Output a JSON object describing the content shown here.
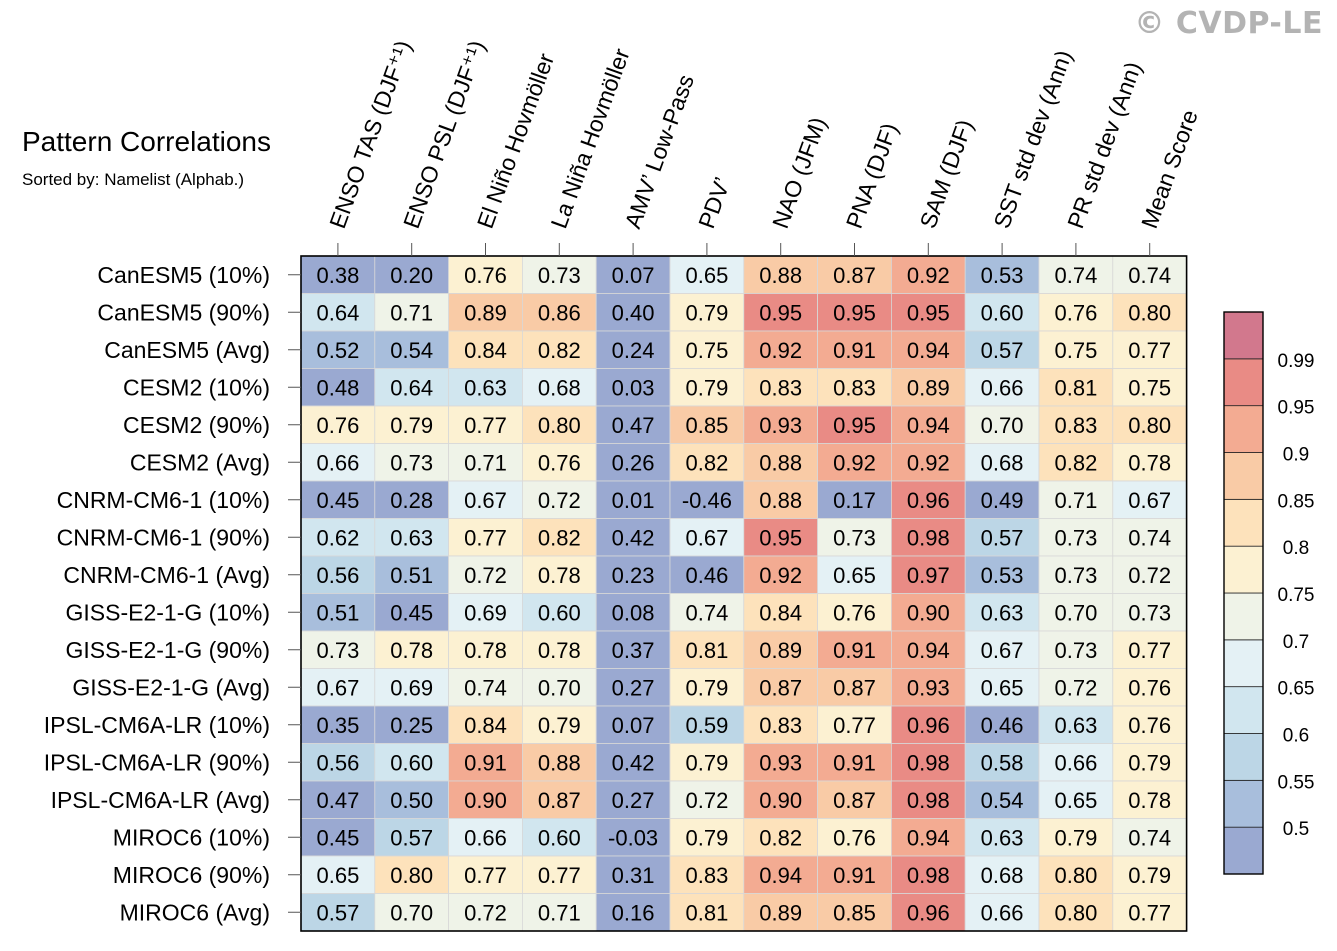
{
  "watermark": "© CVDP-LE",
  "chart_data": {
    "type": "heatmap",
    "title": "Pattern Correlations",
    "subtitle": "Sorted by: Namelist (Alphab.)",
    "columns": [
      "ENSO TAS (DJF⁺¹)",
      "ENSO PSL (DJF⁺¹)",
      "El Niño Hovmöller",
      "La Niña Hovmöller",
      "AMV’ Low-Pass",
      "PDV’",
      "NAO (JFM)",
      "PNA (DJF)",
      "SAM (DJF)",
      "SST std dev (Ann)",
      "PR std dev (Ann)",
      "Mean Score"
    ],
    "rows": [
      "CanESM5 (10%)",
      "CanESM5 (90%)",
      "CanESM5 (Avg)",
      "CESM2 (10%)",
      "CESM2 (90%)",
      "CESM2 (Avg)",
      "CNRM-CM6-1 (10%)",
      "CNRM-CM6-1 (90%)",
      "CNRM-CM6-1 (Avg)",
      "GISS-E2-1-G (10%)",
      "GISS-E2-1-G (90%)",
      "GISS-E2-1-G (Avg)",
      "IPSL-CM6A-LR (10%)",
      "IPSL-CM6A-LR (90%)",
      "IPSL-CM6A-LR (Avg)",
      "MIROC6 (10%)",
      "MIROC6 (90%)",
      "MIROC6 (Avg)"
    ],
    "values": [
      [
        0.38,
        0.2,
        0.76,
        0.73,
        0.07,
        0.65,
        0.88,
        0.87,
        0.92,
        0.53,
        0.74,
        0.74
      ],
      [
        0.64,
        0.71,
        0.89,
        0.86,
        0.4,
        0.79,
        0.95,
        0.95,
        0.95,
        0.6,
        0.76,
        0.8
      ],
      [
        0.52,
        0.54,
        0.84,
        0.82,
        0.24,
        0.75,
        0.92,
        0.91,
        0.94,
        0.57,
        0.75,
        0.77
      ],
      [
        0.48,
        0.64,
        0.63,
        0.68,
        0.03,
        0.79,
        0.83,
        0.83,
        0.89,
        0.66,
        0.81,
        0.75
      ],
      [
        0.76,
        0.79,
        0.77,
        0.8,
        0.47,
        0.85,
        0.93,
        0.95,
        0.94,
        0.7,
        0.83,
        0.8
      ],
      [
        0.66,
        0.73,
        0.71,
        0.76,
        0.26,
        0.82,
        0.88,
        0.92,
        0.92,
        0.68,
        0.82,
        0.78
      ],
      [
        0.45,
        0.28,
        0.67,
        0.72,
        0.01,
        -0.46,
        0.88,
        0.17,
        0.96,
        0.49,
        0.71,
        0.67
      ],
      [
        0.62,
        0.63,
        0.77,
        0.82,
        0.42,
        0.67,
        0.95,
        0.73,
        0.98,
        0.57,
        0.73,
        0.74
      ],
      [
        0.56,
        0.51,
        0.72,
        0.78,
        0.23,
        0.46,
        0.92,
        0.65,
        0.97,
        0.53,
        0.73,
        0.72
      ],
      [
        0.51,
        0.45,
        0.69,
        0.6,
        0.08,
        0.74,
        0.84,
        0.76,
        0.9,
        0.63,
        0.7,
        0.73
      ],
      [
        0.73,
        0.78,
        0.78,
        0.78,
        0.37,
        0.81,
        0.89,
        0.91,
        0.94,
        0.67,
        0.73,
        0.77
      ],
      [
        0.67,
        0.69,
        0.74,
        0.7,
        0.27,
        0.79,
        0.87,
        0.87,
        0.93,
        0.65,
        0.72,
        0.76
      ],
      [
        0.35,
        0.25,
        0.84,
        0.79,
        0.07,
        0.59,
        0.83,
        0.77,
        0.96,
        0.46,
        0.63,
        0.76
      ],
      [
        0.56,
        0.6,
        0.91,
        0.88,
        0.42,
        0.79,
        0.93,
        0.91,
        0.98,
        0.58,
        0.66,
        0.79
      ],
      [
        0.47,
        0.5,
        0.9,
        0.87,
        0.27,
        0.72,
        0.9,
        0.87,
        0.98,
        0.54,
        0.65,
        0.78
      ],
      [
        0.45,
        0.57,
        0.66,
        0.6,
        -0.03,
        0.79,
        0.82,
        0.76,
        0.94,
        0.63,
        0.79,
        0.74
      ],
      [
        0.65,
        0.8,
        0.77,
        0.77,
        0.31,
        0.83,
        0.94,
        0.91,
        0.98,
        0.68,
        0.8,
        0.79
      ],
      [
        0.57,
        0.7,
        0.72,
        0.71,
        0.16,
        0.81,
        0.89,
        0.85,
        0.96,
        0.66,
        0.8,
        0.77
      ]
    ],
    "colorbar": {
      "levels": [
        0.5,
        0.55,
        0.6,
        0.65,
        0.7,
        0.75,
        0.8,
        0.85,
        0.9,
        0.95,
        0.99
      ],
      "tick_labels": [
        "0.5",
        "0.55",
        "0.6",
        "0.65",
        "0.7",
        "0.75",
        "0.8",
        "0.85",
        "0.9",
        "0.95",
        "0.99"
      ],
      "colors": [
        "#9aa9d1",
        "#a8bedc",
        "#bcd6e6",
        "#d1e6ef",
        "#e4f1f5",
        "#eff3e8",
        "#fcf1d2",
        "#fde2bb",
        "#f9cba6",
        "#f3ab92",
        "#e98b85",
        "#d2788d"
      ]
    },
    "legend": "right"
  }
}
